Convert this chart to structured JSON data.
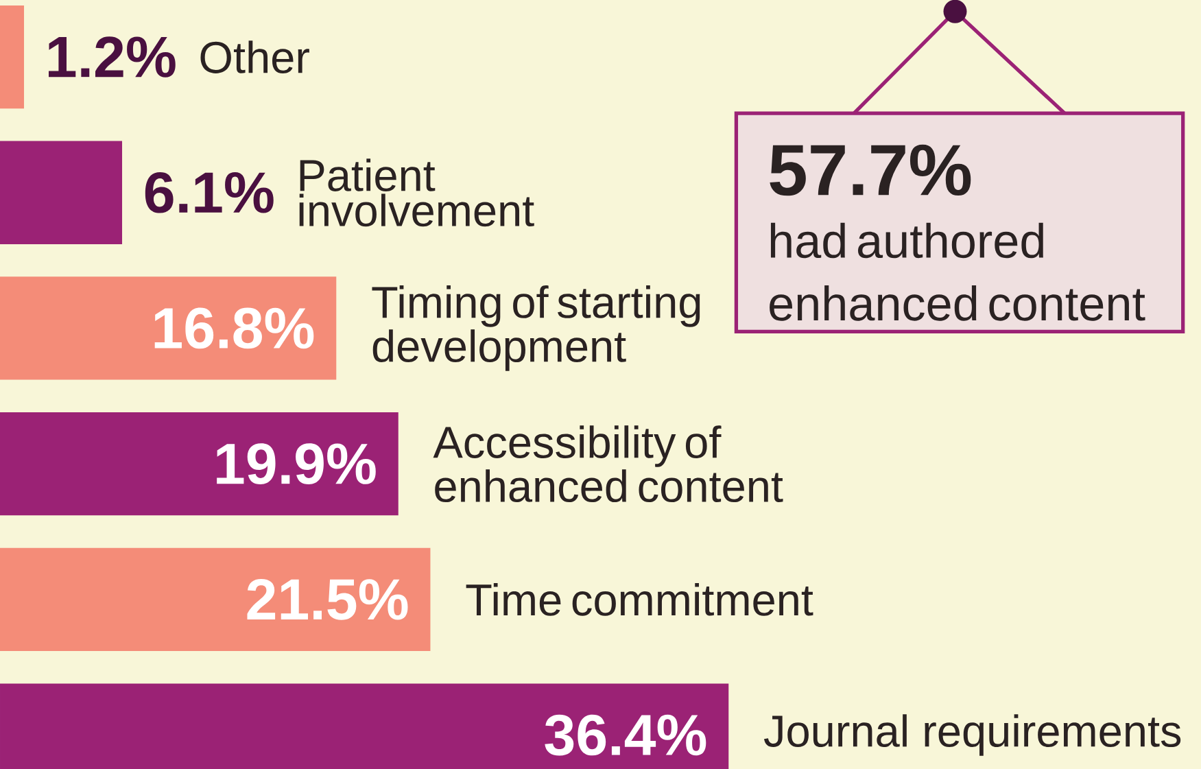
{
  "chart_data": {
    "type": "bar",
    "orientation": "horizontal",
    "categories": [
      "Other",
      "Patient involvement",
      "Timing of starting development",
      "Accessibility of enhanced content",
      "Time commitment",
      "Journal requirements"
    ],
    "values": [
      1.2,
      6.1,
      16.8,
      19.9,
      21.5,
      36.4
    ],
    "value_labels": [
      "1.2%",
      "6.1%",
      "16.8%",
      "19.9%",
      "21.5%",
      "36.4%"
    ],
    "colors": [
      "#f48c78",
      "#9b2275",
      "#f48c78",
      "#9b2275",
      "#f48c78",
      "#9b2275"
    ],
    "xlim": [
      0,
      60
    ],
    "annotations": [
      "57.7%",
      "had authored enhanced content"
    ]
  }
}
